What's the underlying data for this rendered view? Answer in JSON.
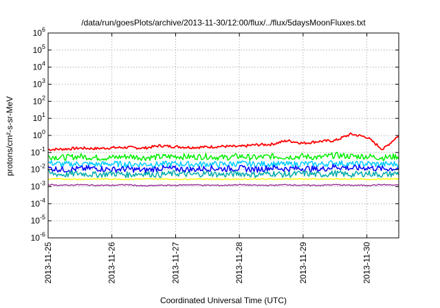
{
  "chart_data": {
    "type": "line",
    "title": "/data/run/goesPlots/archive/2013-11-30/12:00/flux/../flux/5daysMoonFluxes.txt",
    "xlabel": "Coordinated Universal Time (UTC)",
    "ylabel": "protons/cm²-s-sr-MeV",
    "yscale": "log",
    "ylim_exponent": [
      -6,
      6
    ],
    "y_tick_exponents": [
      -6,
      -5,
      -4,
      -3,
      -2,
      -1,
      0,
      1,
      2,
      3,
      4,
      5,
      6
    ],
    "x_tick_labels": [
      "2013-11-25",
      "2013-11-26",
      "2013-11-27",
      "2013-11-28",
      "2013-11-29",
      "2013-11-30"
    ],
    "xlim_days": [
      0,
      5.5
    ],
    "grid": true,
    "series": [
      {
        "color": "#ff0000",
        "x": [
          0,
          0.25,
          0.5,
          0.75,
          1.0,
          1.25,
          1.5,
          1.75,
          2.0,
          2.25,
          2.5,
          2.75,
          3.0,
          3.25,
          3.5,
          3.75,
          4.0,
          4.25,
          4.5,
          4.75,
          5.0,
          5.25,
          5.5
        ],
        "values": [
          0.15,
          0.16,
          0.18,
          0.17,
          0.19,
          0.2,
          0.18,
          0.25,
          0.22,
          0.2,
          0.21,
          0.23,
          0.22,
          0.28,
          0.3,
          0.5,
          0.35,
          0.45,
          0.5,
          1.2,
          0.8,
          0.15,
          1.0
        ]
      },
      {
        "color": "#00ee00",
        "x": [
          0,
          0.25,
          0.5,
          0.75,
          1.0,
          1.25,
          1.5,
          1.75,
          2.0,
          2.25,
          2.5,
          2.75,
          3.0,
          3.25,
          3.5,
          3.75,
          4.0,
          4.25,
          4.5,
          4.75,
          5.0,
          5.25,
          5.5
        ],
        "values": [
          0.06,
          0.05,
          0.06,
          0.05,
          0.05,
          0.06,
          0.05,
          0.055,
          0.06,
          0.055,
          0.06,
          0.05,
          0.06,
          0.05,
          0.06,
          0.055,
          0.06,
          0.05,
          0.07,
          0.06,
          0.06,
          0.05,
          0.06
        ]
      },
      {
        "color": "#00ccff",
        "x": [
          0,
          0.25,
          0.5,
          0.75,
          1.0,
          1.25,
          1.5,
          1.75,
          2.0,
          2.25,
          2.5,
          2.75,
          3.0,
          3.25,
          3.5,
          3.75,
          4.0,
          4.25,
          4.5,
          4.75,
          5.0,
          5.25,
          5.5
        ],
        "values": [
          0.025,
          0.02,
          0.022,
          0.02,
          0.022,
          0.02,
          0.021,
          0.02,
          0.022,
          0.02,
          0.021,
          0.02,
          0.023,
          0.02,
          0.022,
          0.02,
          0.022,
          0.02,
          0.025,
          0.02,
          0.022,
          0.02,
          0.022
        ]
      },
      {
        "color": "#0000ff",
        "x": [
          0,
          0.25,
          0.5,
          0.75,
          1.0,
          1.25,
          1.5,
          1.75,
          2.0,
          2.25,
          2.5,
          2.75,
          3.0,
          3.25,
          3.5,
          3.75,
          4.0,
          4.25,
          4.5,
          4.75,
          5.0,
          5.25,
          5.5
        ],
        "values": [
          0.012,
          0.01,
          0.011,
          0.012,
          0.01,
          0.011,
          0.009,
          0.012,
          0.011,
          0.01,
          0.012,
          0.011,
          0.012,
          0.01,
          0.013,
          0.011,
          0.012,
          0.01,
          0.015,
          0.012,
          0.013,
          0.011,
          0.012
        ]
      },
      {
        "color": "#00aaaa",
        "x": [
          0,
          0.25,
          0.5,
          0.75,
          1.0,
          1.25,
          1.5,
          1.75,
          2.0,
          2.25,
          2.5,
          2.75,
          3.0,
          3.25,
          3.5,
          3.75,
          4.0,
          4.25,
          4.5,
          4.75,
          5.0,
          5.25,
          5.5
        ],
        "values": [
          0.006,
          0.005,
          0.006,
          0.005,
          0.006,
          0.005,
          0.006,
          0.005,
          0.006,
          0.005,
          0.006,
          0.005,
          0.006,
          0.005,
          0.006,
          0.005,
          0.006,
          0.005,
          0.006,
          0.005,
          0.006,
          0.005,
          0.006
        ]
      },
      {
        "color": "#ffff00",
        "x": [
          0,
          0.25,
          0.5,
          0.75,
          1.0,
          1.25,
          1.5,
          1.75,
          2.0,
          2.25,
          2.5,
          2.75,
          3.0,
          3.25,
          3.5,
          3.75,
          4.0,
          4.25,
          4.5,
          4.75,
          5.0,
          5.25,
          5.5
        ],
        "values": [
          0.0028,
          0.0028,
          0.0027,
          0.0028,
          0.0028,
          0.0027,
          0.0028,
          0.0028,
          0.0027,
          0.0028,
          0.0028,
          0.0027,
          0.0028,
          0.0028,
          0.0027,
          0.0028,
          0.0028,
          0.0027,
          0.0028,
          0.0028,
          0.0027,
          0.0028,
          0.0028
        ]
      },
      {
        "color": "#993399",
        "x": [
          0,
          0.25,
          0.5,
          0.75,
          1.0,
          1.25,
          1.5,
          1.75,
          2.0,
          2.25,
          2.5,
          2.75,
          3.0,
          3.25,
          3.5,
          3.75,
          4.0,
          4.25,
          4.5,
          4.75,
          5.0,
          5.25,
          5.5
        ],
        "values": [
          0.0013,
          0.0012,
          0.0013,
          0.0012,
          0.0012,
          0.0013,
          0.0011,
          0.0012,
          0.0012,
          0.0013,
          0.0012,
          0.0012,
          0.0013,
          0.0012,
          0.0012,
          0.0013,
          0.0012,
          0.0012,
          0.0013,
          0.0012,
          0.0012,
          0.0013,
          0.0012
        ]
      }
    ]
  }
}
